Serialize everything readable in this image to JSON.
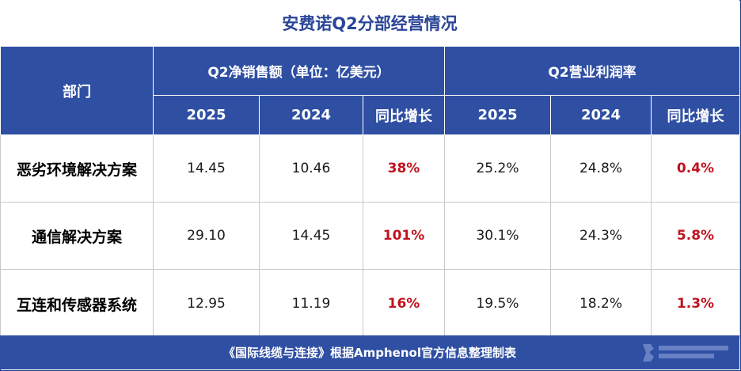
{
  "title": "安费诺Q2分部经营情况",
  "header": {
    "dept": "部门",
    "sales_group": "Q2净销售额（单位：亿美元）",
    "margin_group": "Q2营业利润率",
    "sub": [
      "2025",
      "2024",
      "同比增长",
      "2025",
      "2024",
      "同比增长"
    ]
  },
  "rows": [
    {
      "name": "恶劣环境解决方案",
      "sales_2025": "14.45",
      "sales_2024": "10.46",
      "sales_yoy": "38%",
      "margin_2025": "25.2%",
      "margin_2024": "24.8%",
      "margin_yoy": "0.4%"
    },
    {
      "name": "通信解决方案",
      "sales_2025": "29.10",
      "sales_2024": "14.45",
      "sales_yoy": "101%",
      "margin_2025": "30.1%",
      "margin_2024": "24.3%",
      "margin_yoy": "5.8%"
    },
    {
      "name": "互连和传感器系统",
      "sales_2025": "12.95",
      "sales_2024": "11.19",
      "sales_yoy": "16%",
      "margin_2025": "19.5%",
      "margin_2024": "18.2%",
      "margin_yoy": "1.3%"
    }
  ],
  "footer": "《国际线缆与连接》根据Amphenol官方信息整理制表",
  "colors": {
    "header_bg": "#2f4fa3",
    "title_text": "#2a4597",
    "growth_text": "#c0131f"
  }
}
